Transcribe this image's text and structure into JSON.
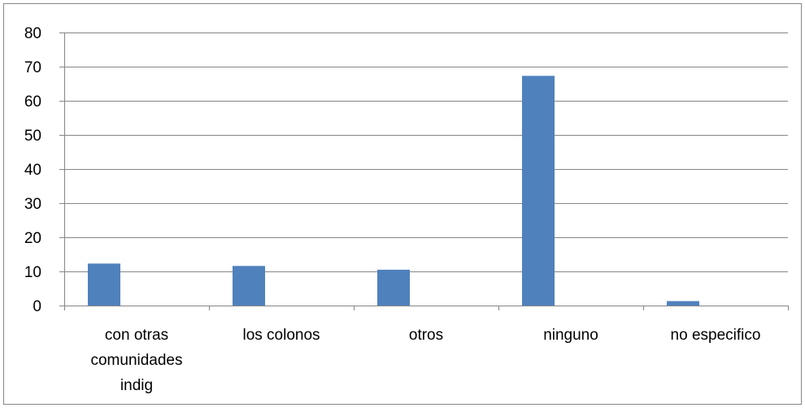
{
  "chart_data": {
    "type": "bar",
    "categories": [
      [
        "con otras",
        "comunidades",
        "indig"
      ],
      [
        "los colonos"
      ],
      [
        "otros"
      ],
      [
        "ninguno"
      ],
      [
        "no especifico"
      ]
    ],
    "values": [
      12.3,
      11.6,
      10.5,
      67.3,
      1.3
    ],
    "ylim": [
      0,
      80
    ],
    "yticks": [
      0,
      10,
      20,
      30,
      40,
      50,
      60,
      70,
      80
    ],
    "grid": true,
    "legend": "none"
  },
  "colors": {
    "bar": "#4f81bd",
    "grid": "#868686",
    "axis": "#868686",
    "border": "#868686"
  }
}
